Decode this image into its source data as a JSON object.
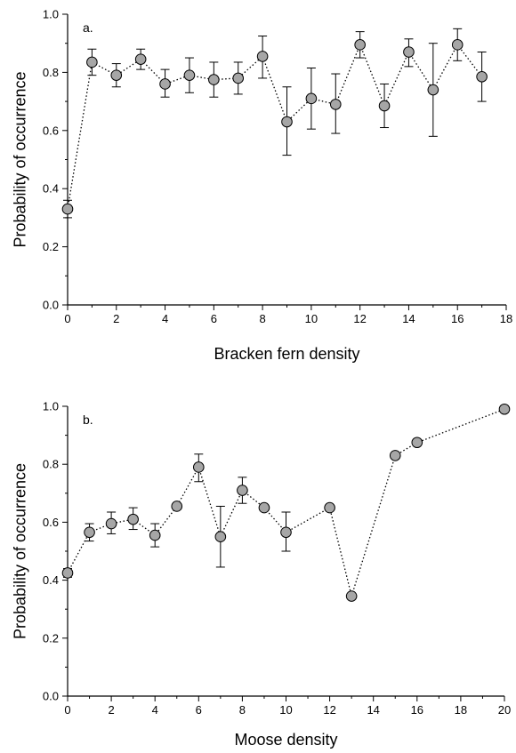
{
  "chart_data": [
    {
      "type": "scatter",
      "panel_label": "a.",
      "xlabel": "Bracken fern density",
      "ylabel": "Probability of occurrence",
      "xlim": [
        0,
        18
      ],
      "ylim": [
        0,
        1.0
      ],
      "xticks": [
        0,
        2,
        4,
        6,
        8,
        10,
        12,
        14,
        16,
        18
      ],
      "yticks": [
        "0.0",
        "0.2",
        "0.4",
        "0.6",
        "0.8",
        "1.0"
      ],
      "grid": false,
      "line_style": "dotted",
      "points": [
        {
          "x": 0,
          "y": 0.33,
          "lo": 0.3,
          "hi": 0.36
        },
        {
          "x": 1,
          "y": 0.835,
          "lo": 0.79,
          "hi": 0.88
        },
        {
          "x": 2,
          "y": 0.79,
          "lo": 0.75,
          "hi": 0.83
        },
        {
          "x": 3,
          "y": 0.845,
          "lo": 0.81,
          "hi": 0.88
        },
        {
          "x": 4,
          "y": 0.76,
          "lo": 0.715,
          "hi": 0.81
        },
        {
          "x": 5,
          "y": 0.79,
          "lo": 0.73,
          "hi": 0.85
        },
        {
          "x": 6,
          "y": 0.775,
          "lo": 0.715,
          "hi": 0.835
        },
        {
          "x": 7,
          "y": 0.78,
          "lo": 0.725,
          "hi": 0.835
        },
        {
          "x": 8,
          "y": 0.855,
          "lo": 0.78,
          "hi": 0.925
        },
        {
          "x": 9,
          "y": 0.63,
          "lo": 0.515,
          "hi": 0.75
        },
        {
          "x": 10,
          "y": 0.71,
          "lo": 0.605,
          "hi": 0.815
        },
        {
          "x": 11,
          "y": 0.69,
          "lo": 0.59,
          "hi": 0.795
        },
        {
          "x": 12,
          "y": 0.895,
          "lo": 0.85,
          "hi": 0.94
        },
        {
          "x": 13,
          "y": 0.685,
          "lo": 0.61,
          "hi": 0.76
        },
        {
          "x": 14,
          "y": 0.87,
          "lo": 0.82,
          "hi": 0.915
        },
        {
          "x": 15,
          "y": 0.74,
          "lo": 0.58,
          "hi": 0.9
        },
        {
          "x": 16,
          "y": 0.895,
          "lo": 0.84,
          "hi": 0.95
        },
        {
          "x": 17,
          "y": 0.785,
          "lo": 0.7,
          "hi": 0.87
        }
      ]
    },
    {
      "type": "scatter",
      "panel_label": "b.",
      "xlabel": "Moose density",
      "ylabel": "Probability of occurrence",
      "xlim": [
        0,
        20
      ],
      "ylim": [
        0,
        1.0
      ],
      "xticks": [
        0,
        2,
        4,
        6,
        8,
        10,
        12,
        14,
        16,
        18,
        20
      ],
      "yticks": [
        "0.0",
        "0.2",
        "0.4",
        "0.6",
        "0.8",
        "1.0"
      ],
      "grid": false,
      "line_style": "dotted",
      "points": [
        {
          "x": 0,
          "y": 0.425,
          "lo": 0.41,
          "hi": 0.44
        },
        {
          "x": 1,
          "y": 0.565,
          "lo": 0.535,
          "hi": 0.595
        },
        {
          "x": 2,
          "y": 0.595,
          "lo": 0.56,
          "hi": 0.635
        },
        {
          "x": 3,
          "y": 0.61,
          "lo": 0.575,
          "hi": 0.65
        },
        {
          "x": 4,
          "y": 0.555,
          "lo": 0.515,
          "hi": 0.595
        },
        {
          "x": 5,
          "y": 0.655,
          "lo": null,
          "hi": null
        },
        {
          "x": 6,
          "y": 0.79,
          "lo": 0.74,
          "hi": 0.835
        },
        {
          "x": 7,
          "y": 0.55,
          "lo": 0.445,
          "hi": 0.655
        },
        {
          "x": 8,
          "y": 0.71,
          "lo": 0.665,
          "hi": 0.755
        },
        {
          "x": 9,
          "y": 0.65,
          "lo": null,
          "hi": null
        },
        {
          "x": 10,
          "y": 0.565,
          "lo": 0.5,
          "hi": 0.635
        },
        {
          "x": 12,
          "y": 0.65,
          "lo": null,
          "hi": null
        },
        {
          "x": 13,
          "y": 0.345,
          "lo": null,
          "hi": null
        },
        {
          "x": 15,
          "y": 0.83,
          "lo": null,
          "hi": null
        },
        {
          "x": 16,
          "y": 0.875,
          "lo": null,
          "hi": null
        },
        {
          "x": 20,
          "y": 0.99,
          "lo": null,
          "hi": null
        }
      ]
    }
  ]
}
